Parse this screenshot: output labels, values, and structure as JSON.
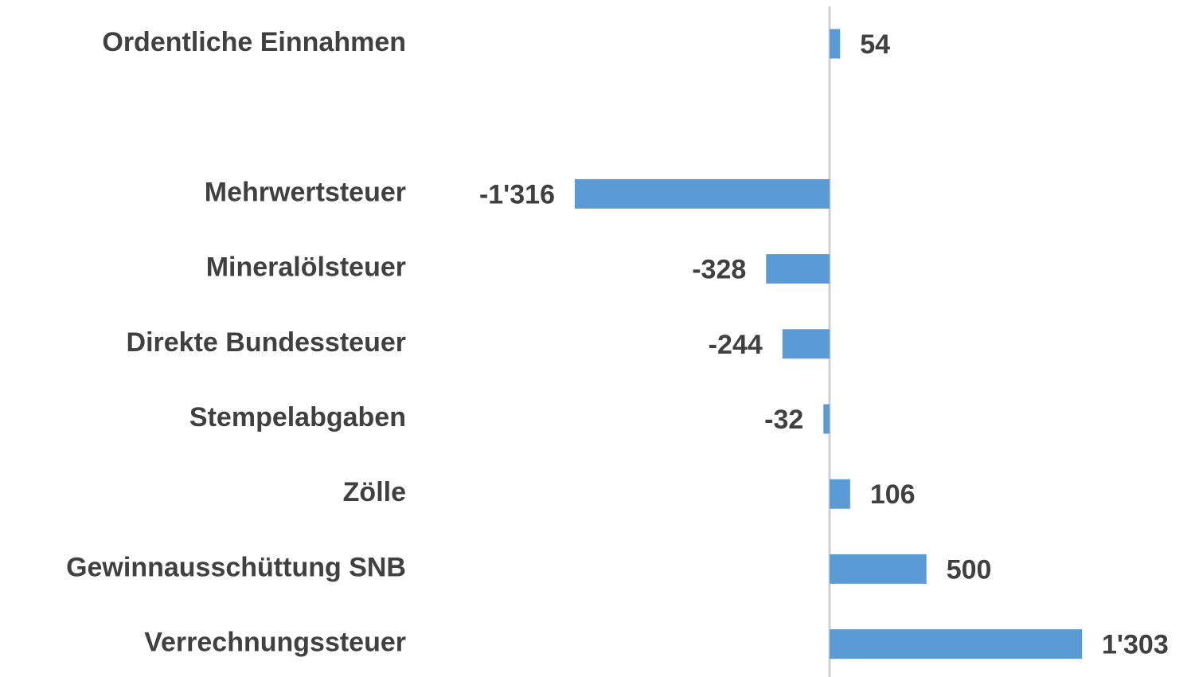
{
  "chart_data": {
    "type": "hbar",
    "categories": [
      "Ordentliche Einnahmen",
      null,
      "Mehrwertsteuer",
      "Mineralölsteuer",
      "Direkte Bundessteuer",
      "Stempelabgaben",
      "Zölle",
      "Gewinnausschüttung SNB",
      "Verrechnungssteuer"
    ],
    "values": [
      54,
      null,
      -1316,
      -328,
      -244,
      -32,
      106,
      500,
      1303
    ],
    "value_labels": [
      "54",
      null,
      "-1'316",
      "-328",
      "-244",
      "-32",
      "106",
      "500",
      "1'303"
    ],
    "color": "#5b9bd5"
  }
}
